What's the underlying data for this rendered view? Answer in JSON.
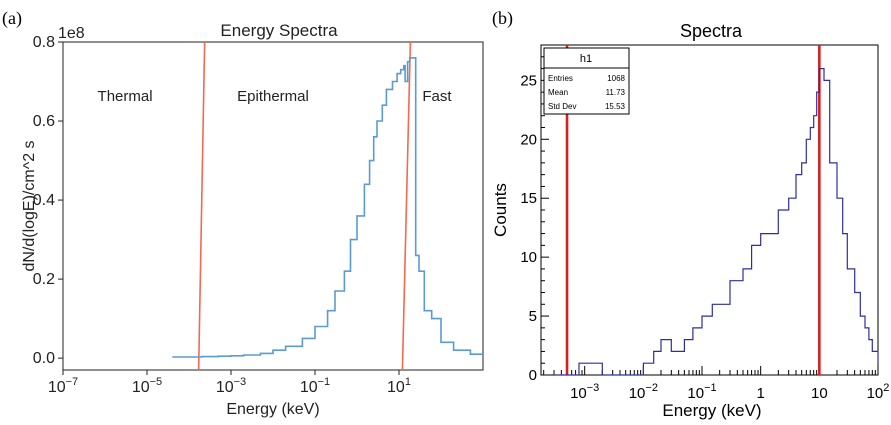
{
  "chart_data": [
    {
      "panel": "(a)",
      "type": "line",
      "title": "Energy Spectra",
      "xlabel": "Energy (keV)",
      "ylabel": "dN/d(logE)/cm^2 s",
      "y_multiplier": "1e8",
      "xscale": "log",
      "xlim": [
        1e-07,
        1000
      ],
      "ylim": [
        -0.03,
        0.8
      ],
      "x_ticks": [
        {
          "value": 1e-07,
          "label": "10^-7"
        },
        {
          "value": 1e-05,
          "label": "10^-5"
        },
        {
          "value": 0.001,
          "label": "10^-3"
        },
        {
          "value": 0.1,
          "label": "10^-1"
        },
        {
          "value": 10,
          "label": "10^1"
        }
      ],
      "y_ticks": [
        {
          "value": 0.0,
          "label": "0.0"
        },
        {
          "value": 0.2,
          "label": "0.2"
        },
        {
          "value": 0.4,
          "label": "0.4"
        },
        {
          "value": 0.6,
          "label": "0.6"
        },
        {
          "value": 0.8,
          "label": "0.8"
        }
      ],
      "regions": [
        {
          "label": "Thermal",
          "x": 3e-06
        },
        {
          "label": "Epithermal",
          "x": 0.01
        },
        {
          "label": "Fast",
          "x": 80
        }
      ],
      "boundaries": [
        0.0002,
        15
      ],
      "series_color": "#5b9bd0",
      "boundary_color": "#f26a4f",
      "series": [
        {
          "x": [
            4e-05,
            0.0001,
            0.0002,
            0.0005,
            0.001,
            0.002,
            0.005,
            0.01,
            0.02,
            0.05,
            0.1,
            0.2,
            0.3,
            0.5,
            0.7,
            1,
            1.5,
            2,
            2.5,
            3,
            4,
            5,
            7,
            9,
            11,
            13,
            14,
            16,
            18,
            20,
            25,
            30,
            40,
            60,
            100,
            200,
            500,
            1000
          ],
          "y": [
            0.003,
            0.003,
            0.004,
            0.005,
            0.006,
            0.008,
            0.012,
            0.02,
            0.03,
            0.05,
            0.08,
            0.12,
            0.17,
            0.22,
            0.3,
            0.36,
            0.44,
            0.5,
            0.56,
            0.6,
            0.64,
            0.68,
            0.7,
            0.72,
            0.73,
            0.74,
            0.7,
            0.75,
            0.76,
            0.76,
            0.26,
            0.22,
            0.12,
            0.1,
            0.04,
            0.02,
            0.01,
            0.01
          ]
        }
      ]
    },
    {
      "panel": "(b)",
      "type": "line",
      "title": "Spectra",
      "xlabel": "Energy (keV)",
      "ylabel": "Counts",
      "xscale": "log",
      "xlim": [
        0.00018,
        100
      ],
      "ylim": [
        0,
        28
      ],
      "x_ticks": [
        {
          "value": 0.001,
          "label": "10^-3"
        },
        {
          "value": 0.01,
          "label": "10^-2"
        },
        {
          "value": 0.1,
          "label": "10^-1"
        },
        {
          "value": 1,
          "label": "1"
        },
        {
          "value": 10,
          "label": "10"
        },
        {
          "value": 100,
          "label": "10^2"
        }
      ],
      "y_ticks": [
        {
          "value": 0,
          "label": "0"
        },
        {
          "value": 5,
          "label": "5"
        },
        {
          "value": 10,
          "label": "10"
        },
        {
          "value": 15,
          "label": "15"
        },
        {
          "value": 20,
          "label": "20"
        },
        {
          "value": 25,
          "label": "25"
        }
      ],
      "boundaries": [
        0.0005,
        10
      ],
      "series_color": "#2e2e9e",
      "boundary_color": "#d62020",
      "stats_box": {
        "name": "h1",
        "rows": [
          {
            "label": "Entries",
            "value": "1068"
          },
          {
            "label": "Mean",
            "value": "11.73"
          },
          {
            "label": "Std Dev",
            "value": "15.53"
          }
        ]
      },
      "series": [
        {
          "x": [
            0.0003,
            0.0008,
            0.002,
            0.005,
            0.01,
            0.015,
            0.02,
            0.03,
            0.05,
            0.07,
            0.1,
            0.15,
            0.2,
            0.3,
            0.5,
            0.7,
            1,
            1.5,
            2,
            3,
            4,
            5,
            6,
            7,
            8,
            9,
            10,
            12,
            15,
            20,
            25,
            30,
            40,
            50,
            60,
            70,
            80,
            100
          ],
          "y": [
            0,
            1,
            0,
            0,
            1,
            2,
            3,
            2,
            3,
            4,
            5,
            6,
            6,
            8,
            9,
            11,
            12,
            12,
            14,
            15,
            17,
            18,
            20,
            21,
            22,
            24,
            26,
            25,
            18,
            15,
            12,
            9,
            7,
            5,
            4,
            3,
            2,
            1
          ]
        }
      ]
    }
  ]
}
